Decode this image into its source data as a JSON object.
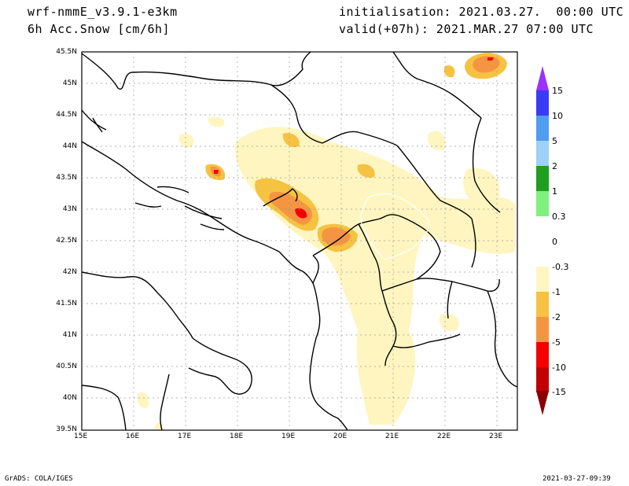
{
  "header": {
    "model": "wrf-nmmE_v3.9.1-e3km",
    "field": "6h Acc.Snow [cm/6h]",
    "init": "initialisation: 2021.03.27.  00:00 UTC",
    "valid": "valid(+07h): 2021.MAR.27 07:00 UTC"
  },
  "map": {
    "lat_labels": [
      "45.5N",
      "45N",
      "44.5N",
      "44N",
      "43.5N",
      "43N",
      "42.5N",
      "42N",
      "41.5N",
      "41N",
      "40.5N",
      "40N",
      "39.5N"
    ],
    "lon_labels": [
      "15E",
      "16E",
      "17E",
      "18E",
      "19E",
      "20E",
      "21E",
      "22E",
      "23E"
    ]
  },
  "colorbar": {
    "labels": [
      "15",
      "10",
      "5",
      "2",
      "1",
      "0.3",
      "0",
      "-0.3",
      "-1",
      "-2",
      "-5",
      "-10",
      "-15"
    ],
    "colors": [
      "#9b30ff",
      "#3b3bf5",
      "#4f9cf0",
      "#9dd1f7",
      "#1f9e1f",
      "#7ef07e",
      "#ffffff",
      "#ffffff",
      "#fff5c0",
      "#f5c242",
      "#f59542",
      "#f50000",
      "#c00000",
      "#8b0000"
    ]
  },
  "footer": {
    "left": "GrADS: COLA/IGES",
    "right": "2021-03-27-09:39"
  }
}
